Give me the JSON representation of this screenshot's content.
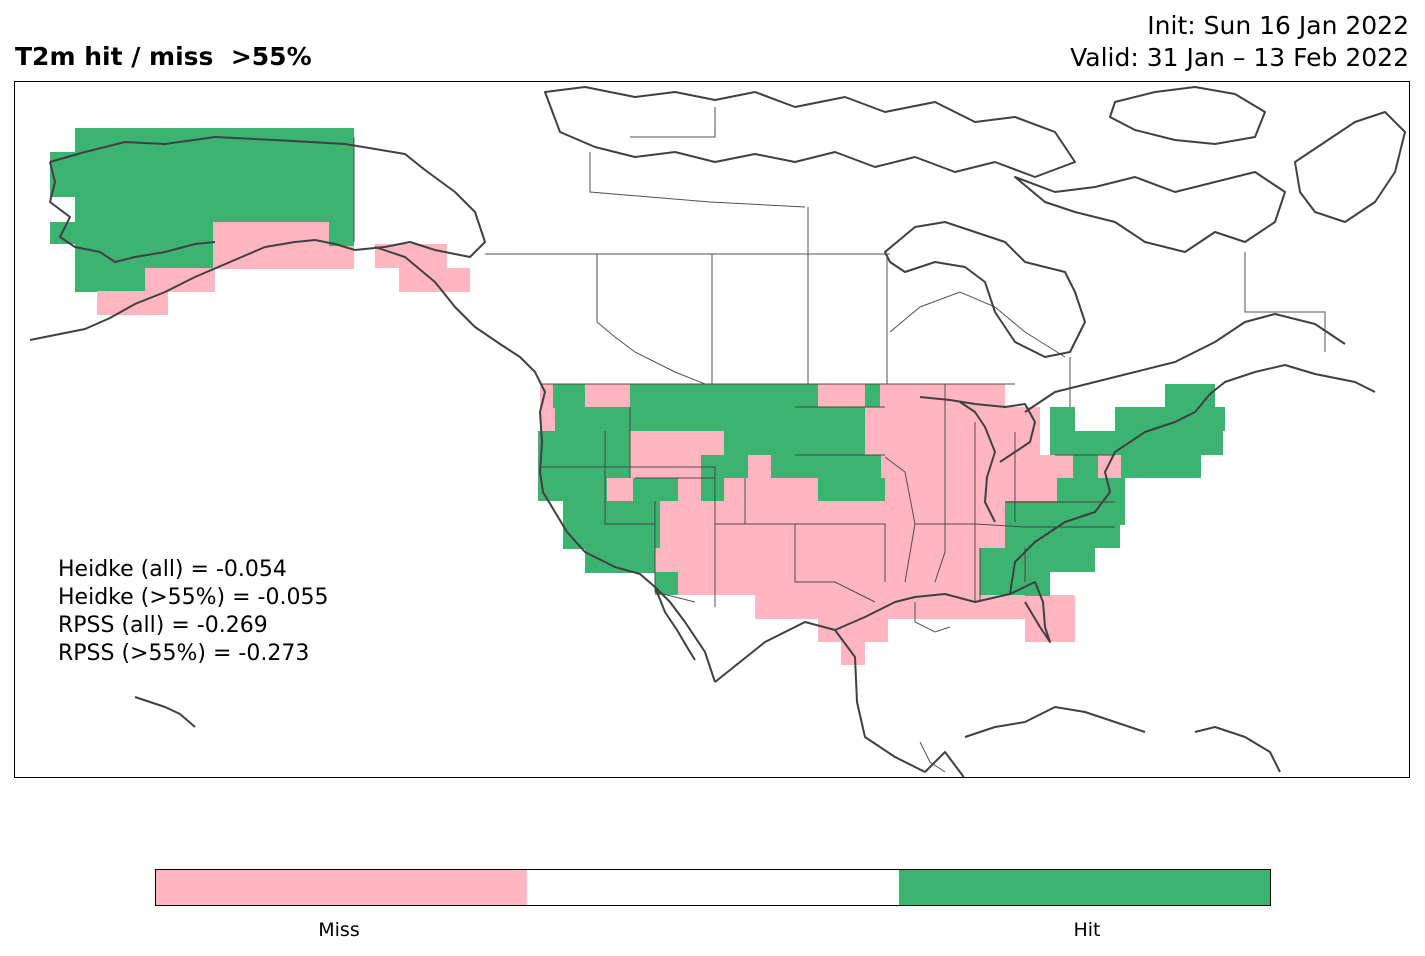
{
  "title": "T2m hit / miss  >55%",
  "init": "Init: Sun 16 Jan 2022",
  "valid": "Valid: 31 Jan – 13 Feb 2022",
  "scores": {
    "heidke_all": "Heidke (all) = -0.054",
    "heidke_55": "Heidke (>55%) = -0.055",
    "rpss_all": "RPSS (all) = -0.269",
    "rpss_55": "RPSS (>55%) = -0.273"
  },
  "colors": {
    "miss": "#ffb6c1",
    "neutral": "#ffffff",
    "hit": "#3cb371",
    "coast": "#404040"
  },
  "colorbar": {
    "miss_label": "Miss",
    "hit_label": "Hit"
  }
}
